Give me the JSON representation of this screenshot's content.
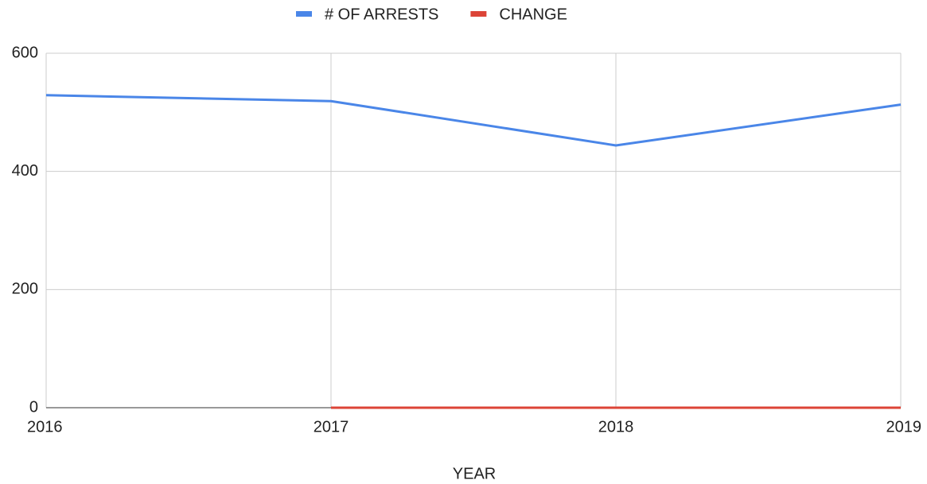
{
  "chart_data": {
    "type": "line",
    "x_label": "YEAR",
    "x": [
      2016,
      2017,
      2018,
      2019
    ],
    "xlim": [
      2016,
      2019
    ],
    "xticks": [
      2016,
      2017,
      2018,
      2019
    ],
    "ylim": [
      0,
      600
    ],
    "yticks": [
      0,
      200,
      400,
      600
    ],
    "grid": true,
    "legend": "top",
    "series": [
      {
        "name": "# OF ARRESTS",
        "color": "#4a86e8",
        "values": [
          529,
          519,
          444,
          513
        ]
      },
      {
        "name": "CHANGE",
        "color": "#dc4437",
        "values": [
          null,
          0,
          0,
          0
        ]
      }
    ]
  }
}
